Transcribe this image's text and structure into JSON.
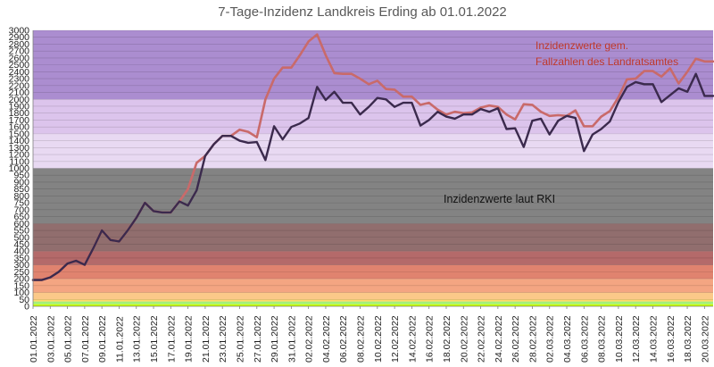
{
  "chart_data": {
    "type": "line",
    "title": "7-Tage-Inzidenz Landkreis Erding ab 01.01.2022",
    "xlabel": "",
    "ylabel": "",
    "ylim": [
      0,
      3000
    ],
    "yticks": [
      0,
      50,
      100,
      150,
      200,
      250,
      300,
      350,
      400,
      450,
      500,
      550,
      600,
      650,
      700,
      750,
      800,
      850,
      900,
      950,
      1000,
      1100,
      1200,
      1300,
      1400,
      1500,
      1600,
      1700,
      1800,
      1900,
      2000,
      2100,
      2200,
      2300,
      2400,
      2500,
      2600,
      2700,
      2800,
      2900,
      3000
    ],
    "x_tick_labels": [
      "01.01.2022",
      "03.01.2022",
      "05.01.2022",
      "07.01.2022",
      "09.01.2022",
      "11.01.2022",
      "13.01.2022",
      "15.01.2022",
      "17.01.2022",
      "19.01.2022",
      "21.01.2022",
      "23.01.2022",
      "25.01.2022",
      "27.01.2022",
      "29.01.2022",
      "31.01.2022",
      "02.02.2022",
      "04.02.2022",
      "06.02.2022",
      "08.02.2022",
      "10.02.2022",
      "12.02.2022",
      "14.02.2022",
      "16.02.2022",
      "18.02.2022",
      "20.02.2022",
      "22.02.2022",
      "24.02.2022",
      "26.02.2022",
      "28.02.2022",
      "02.03.2022",
      "04.03.2022",
      "06.03.2022",
      "08.03.2022",
      "10.03.2022",
      "12.03.2022",
      "14.03.2022",
      "16.03.2022",
      "18.03.2022",
      "20.03.2022"
    ],
    "background_bands": [
      {
        "from": 0,
        "to": 15,
        "color": "#c8ff00"
      },
      {
        "from": 15,
        "to": 35,
        "color": "#a3f07a"
      },
      {
        "from": 35,
        "to": 50,
        "color": "#ffd966"
      },
      {
        "from": 50,
        "to": 100,
        "color": "#fbc989"
      },
      {
        "from": 100,
        "to": 200,
        "color": "#f4a582"
      },
      {
        "from": 200,
        "to": 300,
        "color": "#e0836f"
      },
      {
        "from": 300,
        "to": 400,
        "color": "#b46a6a"
      },
      {
        "from": 400,
        "to": 600,
        "color": "#916e6e"
      },
      {
        "from": 600,
        "to": 1000,
        "color": "#838383"
      },
      {
        "from": 1000,
        "to": 1500,
        "color": "#e8d9f2"
      },
      {
        "from": 1500,
        "to": 2000,
        "color": "#dcc4ec"
      },
      {
        "from": 2000,
        "to": 3000,
        "color": "#ab8dd0"
      }
    ],
    "series": [
      {
        "name": "Inzidenzwerte gem. Fallzahlen des Landratsamtes",
        "color": "#c96a6a",
        "values": [
          190,
          190,
          210,
          250,
          310,
          330,
          300,
          420,
          550,
          480,
          470,
          550,
          640,
          750,
          690,
          680,
          680,
          760,
          850,
          1080,
          1180,
          1350,
          1470,
          1470,
          1560,
          1530,
          1450,
          2000,
          2300,
          2460,
          2460,
          2640,
          2840,
          2940,
          2640,
          2380,
          2370,
          2370,
          2300,
          2220,
          2270,
          2150,
          2140,
          2040,
          2040,
          1920,
          1950,
          1850,
          1780,
          1820,
          1800,
          1810,
          1880,
          1910,
          1890,
          1780,
          1710,
          1930,
          1920,
          1820,
          1760,
          1770,
          1760,
          1840,
          1610,
          1610,
          1750,
          1830,
          2030,
          2290,
          2300,
          2410,
          2410,
          2330,
          2450,
          2230,
          2400,
          2590,
          2550,
          2550
        ]
      },
      {
        "name": "Inzidenzwerte laut RKI",
        "color": "#3b2a4d",
        "values": [
          190,
          190,
          210,
          250,
          310,
          330,
          300,
          420,
          550,
          480,
          470,
          550,
          640,
          750,
          690,
          680,
          680,
          760,
          730,
          840,
          1180,
          1350,
          1470,
          1470,
          1400,
          1370,
          1380,
          1120,
          1610,
          1420,
          1600,
          1650,
          1730,
          2180,
          1990,
          2110,
          1950,
          1950,
          1780,
          1890,
          2020,
          2000,
          1890,
          1950,
          1950,
          1620,
          1700,
          1820,
          1750,
          1720,
          1780,
          1780,
          1860,
          1820,
          1870,
          1570,
          1580,
          1310,
          1690,
          1720,
          1490,
          1690,
          1760,
          1730,
          1250,
          1490,
          1570,
          1680,
          1960,
          2180,
          2250,
          2220,
          2220,
          1960,
          2060,
          2160,
          2110,
          2370,
          2050,
          2050
        ]
      }
    ],
    "annotations": [
      {
        "text_lines": [
          "Inzidenzwerte gem.",
          "Fallzahlen des Landratsamtes"
        ],
        "color": "#c0392b"
      },
      {
        "text_lines": [
          "Inzidenzwerte laut RKI"
        ],
        "color": "#111111"
      }
    ],
    "grid": true,
    "legend": "none"
  }
}
